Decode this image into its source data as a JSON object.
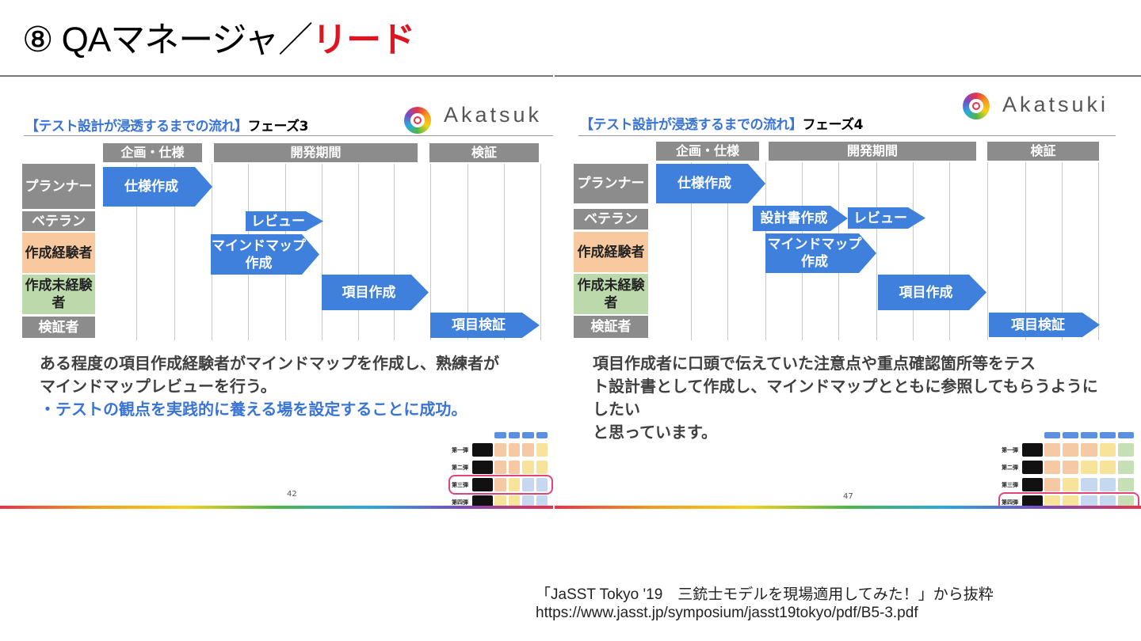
{
  "title": {
    "circled_number": "⑧",
    "main": " QAマネージャ／",
    "highlight": "リード",
    "highlight_color": "#e0141e"
  },
  "slides": [
    {
      "title_blue": "【テスト設計が浸透するまでの流れ】",
      "title_black": "フェーズ3",
      "logo_text": "Akatsuk",
      "phases": [
        "企画・仕様",
        "開発期間",
        "検証"
      ],
      "roles": [
        "プランナー",
        "ベテラン",
        "作成経験者",
        "作成未経験者",
        "検証者"
      ],
      "tasks": [
        "仕様作成",
        "レビュー",
        "マインドマップ作成",
        "項目作成",
        "項目検証"
      ],
      "body": [
        "ある程度の項目作成経験者がマインドマップを作成し、熟練者が",
        "マインドマップレビューを行う。"
      ],
      "body_highlight": "・テストの観点を実践的に養える場を設定することに成功。",
      "page_number": "42",
      "mini_rows": [
        "第一弾",
        "第二弾",
        "第三弾",
        "第四弾"
      ]
    },
    {
      "title_blue": "【テスト設計が浸透するまでの流れ】",
      "title_black": "フェーズ4",
      "logo_text": "Akatsuki",
      "phases": [
        "企画・仕様",
        "開発期間",
        "検証"
      ],
      "roles": [
        "プランナー",
        "ベテラン",
        "作成経験者",
        "作成未経験者",
        "検証者"
      ],
      "tasks": [
        "仕様作成",
        "設計書作成",
        "レビュー",
        "マインドマップ作成",
        "項目作成",
        "項目検証"
      ],
      "body": [
        "項目作成者に口頭で伝えていた注意点や重点確認箇所等をテス",
        "ト設計書として作成し、マインドマップとともに参照してもらうように",
        "したい",
        "と思っています。"
      ],
      "body_highlight": "",
      "page_number": "47",
      "mini_rows": [
        "第一弾",
        "第二弾",
        "第三弾",
        "第四弾"
      ]
    }
  ],
  "colors": {
    "accent_blue": "#3e80dc",
    "experienced": "#f8c89e",
    "inexperienced": "#bcd9ac",
    "header_gray": "#8c8c8c"
  },
  "credit": {
    "line1": "「JaSST Tokyo '19　三銃士モデルを現場適用してみた！」から抜粋",
    "line2": "https://www.jasst.jp/symposium/jasst19tokyo/pdf/B5-3.pdf"
  }
}
